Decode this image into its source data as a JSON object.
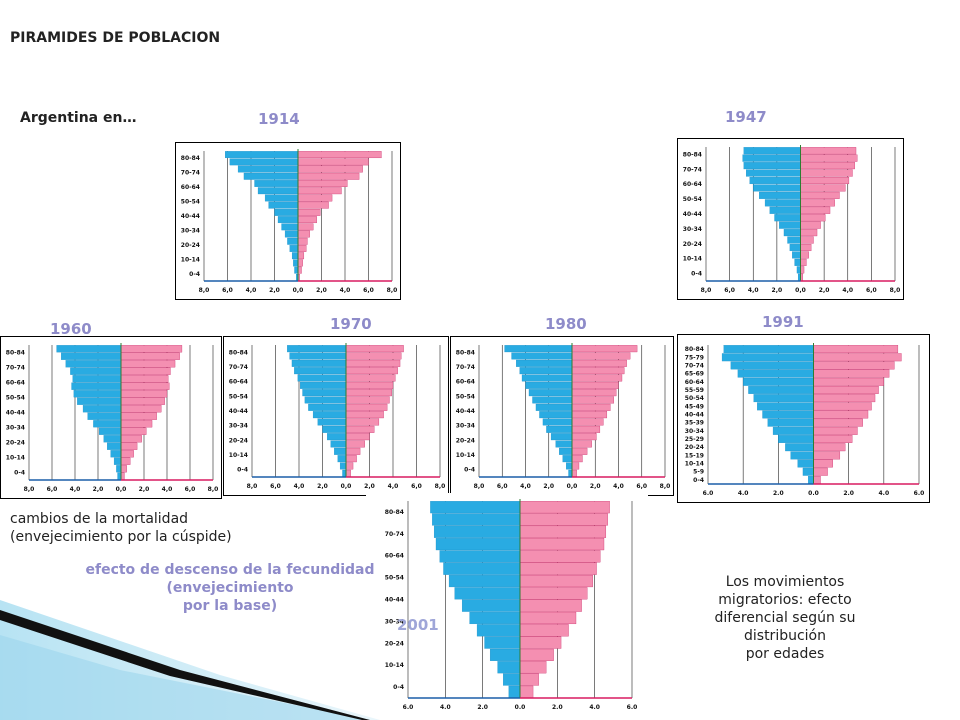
{
  "page": {
    "title": "PIRAMIDES DE POBLACION",
    "subtitle": "Argentina en…",
    "notes": {
      "mortality": [
        "cambios de la mortalidad",
        "(envejecimiento por la cúspide)"
      ],
      "fertility": [
        "efecto de descenso de la fecundidad",
        "(envejecimiento",
        "por la base)"
      ],
      "migration": [
        "Los movimientos",
        "migratorios: efecto",
        "diferencial según su",
        "distribución",
        "por edades"
      ]
    }
  },
  "colors": {
    "male": "#29ABE2",
    "female": "#F48FB1",
    "edge": "#1C5FA8",
    "year": "#8E8BC9"
  },
  "chart_data": [
    {
      "type": "bar",
      "year": "1914",
      "age_labels": [
        "80-84",
        "70-74",
        "60-64",
        "50-54",
        "40-44",
        "30-34",
        "20-24",
        "10-14",
        "0-4"
      ],
      "x_ticks": [
        "8,0",
        "6,0",
        "4,0",
        "2,0",
        "0,0",
        "2,0",
        "4,0",
        "6,0",
        "8,0"
      ],
      "xlim": [
        -8,
        8
      ],
      "series": [
        {
          "values": [
            0.15,
            0.3,
            0.4,
            0.5,
            0.7,
            0.9,
            1.1,
            1.4,
            1.7,
            2.0,
            2.5,
            2.8,
            3.4,
            3.7,
            4.6,
            5.1,
            5.8,
            6.2
          ]
        },
        {
          "values": [
            0.15,
            0.3,
            0.4,
            0.5,
            0.7,
            0.8,
            1.0,
            1.3,
            1.6,
            1.9,
            2.6,
            2.9,
            3.7,
            4.2,
            5.2,
            5.5,
            6.0,
            7.1
          ]
        }
      ]
    },
    {
      "type": "bar",
      "year": "1947",
      "age_labels": [
        "80-84",
        "70-74",
        "60-64",
        "50-54",
        "40-44",
        "30-34",
        "20-24",
        "10-14",
        "0-4"
      ],
      "x_ticks": [
        "8,0",
        "6,0",
        "4,0",
        "2,0",
        "0,0",
        "2,0",
        "4,0",
        "6,0",
        "8,0"
      ],
      "xlim": [
        -8,
        8
      ],
      "series": [
        {
          "values": [
            0.2,
            0.3,
            0.5,
            0.7,
            0.9,
            1.1,
            1.4,
            1.8,
            2.2,
            2.6,
            3.0,
            3.5,
            4.0,
            4.3,
            4.6,
            4.8,
            4.9,
            4.8
          ]
        },
        {
          "values": [
            0.2,
            0.3,
            0.5,
            0.7,
            0.9,
            1.1,
            1.4,
            1.7,
            2.1,
            2.5,
            2.9,
            3.3,
            3.8,
            4.1,
            4.4,
            4.6,
            4.8,
            4.7
          ]
        }
      ]
    },
    {
      "type": "bar",
      "year": "1960",
      "age_labels": [
        "80-84",
        "70-74",
        "60-64",
        "50-54",
        "40-44",
        "30-34",
        "20-24",
        "10-14",
        "0-4"
      ],
      "x_ticks": [
        "8,0",
        "6,0",
        "4,0",
        "2,0",
        "0,0",
        "2,0",
        "4,0",
        "6,0",
        "8,0"
      ],
      "xlim": [
        -8,
        8
      ],
      "series": [
        {
          "values": [
            0.3,
            0.4,
            0.6,
            0.9,
            1.2,
            1.5,
            1.9,
            2.4,
            2.9,
            3.3,
            3.8,
            4.1,
            4.3,
            4.2,
            4.4,
            4.8,
            5.2,
            5.6
          ]
        },
        {
          "values": [
            0.3,
            0.5,
            0.8,
            1.1,
            1.4,
            1.8,
            2.2,
            2.7,
            3.1,
            3.5,
            3.8,
            4.0,
            4.2,
            4.1,
            4.3,
            4.7,
            5.1,
            5.3
          ]
        }
      ]
    },
    {
      "type": "bar",
      "year": "1970",
      "age_labels": [
        "80-84",
        "70-74",
        "60-64",
        "50-54",
        "40-44",
        "30-34",
        "20-24",
        "10-14",
        "0-4"
      ],
      "x_ticks": [
        "8,0",
        "6,0",
        "4,0",
        "2,0",
        "0,0",
        "2,0",
        "4,0",
        "6,0",
        "8,0"
      ],
      "xlim": [
        -8,
        8
      ],
      "series": [
        {
          "values": [
            0.3,
            0.5,
            0.7,
            1.0,
            1.3,
            1.6,
            2.0,
            2.4,
            2.8,
            3.2,
            3.5,
            3.7,
            3.9,
            4.1,
            4.4,
            4.6,
            4.8,
            5.0
          ]
        },
        {
          "values": [
            0.4,
            0.6,
            0.9,
            1.2,
            1.6,
            2.0,
            2.4,
            2.8,
            3.2,
            3.5,
            3.7,
            3.9,
            4.0,
            4.2,
            4.4,
            4.6,
            4.7,
            4.9
          ]
        }
      ]
    },
    {
      "type": "bar",
      "year": "1980",
      "age_labels": [
        "80-84",
        "70-74",
        "60-64",
        "50-54",
        "40-44",
        "30-34",
        "20-24",
        "10-14",
        "0-4"
      ],
      "x_ticks": [
        "8,0",
        "6,0",
        "4,0",
        "2,0",
        "0,0",
        "2,0",
        "4,0",
        "6,0",
        "8,0"
      ],
      "xlim": [
        -8,
        8
      ],
      "series": [
        {
          "values": [
            0.3,
            0.5,
            0.8,
            1.1,
            1.4,
            1.8,
            2.2,
            2.5,
            2.8,
            3.1,
            3.4,
            3.7,
            4.0,
            4.3,
            4.5,
            4.8,
            5.2,
            5.8
          ]
        },
        {
          "values": [
            0.4,
            0.6,
            0.9,
            1.3,
            1.7,
            2.1,
            2.4,
            2.7,
            3.0,
            3.3,
            3.6,
            3.8,
            4.0,
            4.3,
            4.5,
            4.7,
            5.0,
            5.6
          ]
        }
      ]
    },
    {
      "type": "bar",
      "year": "1991",
      "age_labels": [
        "80-84",
        "75-79",
        "70-74",
        "65-69",
        "60-64",
        "55-59",
        "50-54",
        "45-49",
        "40-44",
        "35-39",
        "30-34",
        "25-29",
        "20-24",
        "15-19",
        "10-14",
        "5-9",
        "0-4"
      ],
      "x_ticks": [
        "6.0",
        "4.0",
        "2.0",
        "0.0",
        "2.0",
        "4.0",
        "6.0"
      ],
      "xlim": [
        -6,
        6
      ],
      "series": [
        {
          "values": [
            0.3,
            0.6,
            0.9,
            1.3,
            1.6,
            2.0,
            2.3,
            2.6,
            2.9,
            3.2,
            3.4,
            3.7,
            4.0,
            4.3,
            4.7,
            5.2,
            5.1
          ]
        },
        {
          "values": [
            0.4,
            0.8,
            1.1,
            1.5,
            1.8,
            2.2,
            2.5,
            2.8,
            3.1,
            3.3,
            3.5,
            3.7,
            4.0,
            4.3,
            4.6,
            5.0,
            4.8
          ]
        }
      ]
    },
    {
      "type": "bar",
      "year": "2001",
      "age_labels": [
        "80-84",
        "70-74",
        "60-64",
        "50-54",
        "40-44",
        "30-34",
        "20-24",
        "10-14",
        "0-4"
      ],
      "x_ticks": [
        "6.0",
        "4.0",
        "2.0",
        "0.0",
        "2.0",
        "4.0",
        "6.0"
      ],
      "xlim": [
        -6,
        6
      ],
      "series": [
        {
          "values": [
            0.6,
            0.9,
            1.2,
            1.6,
            1.9,
            2.3,
            2.7,
            3.1,
            3.5,
            3.8,
            4.1,
            4.3,
            4.5,
            4.6,
            4.7,
            4.8
          ]
        },
        {
          "values": [
            0.7,
            1.0,
            1.4,
            1.8,
            2.2,
            2.6,
            3.0,
            3.3,
            3.6,
            3.9,
            4.1,
            4.3,
            4.5,
            4.6,
            4.7,
            4.8
          ]
        }
      ]
    }
  ]
}
